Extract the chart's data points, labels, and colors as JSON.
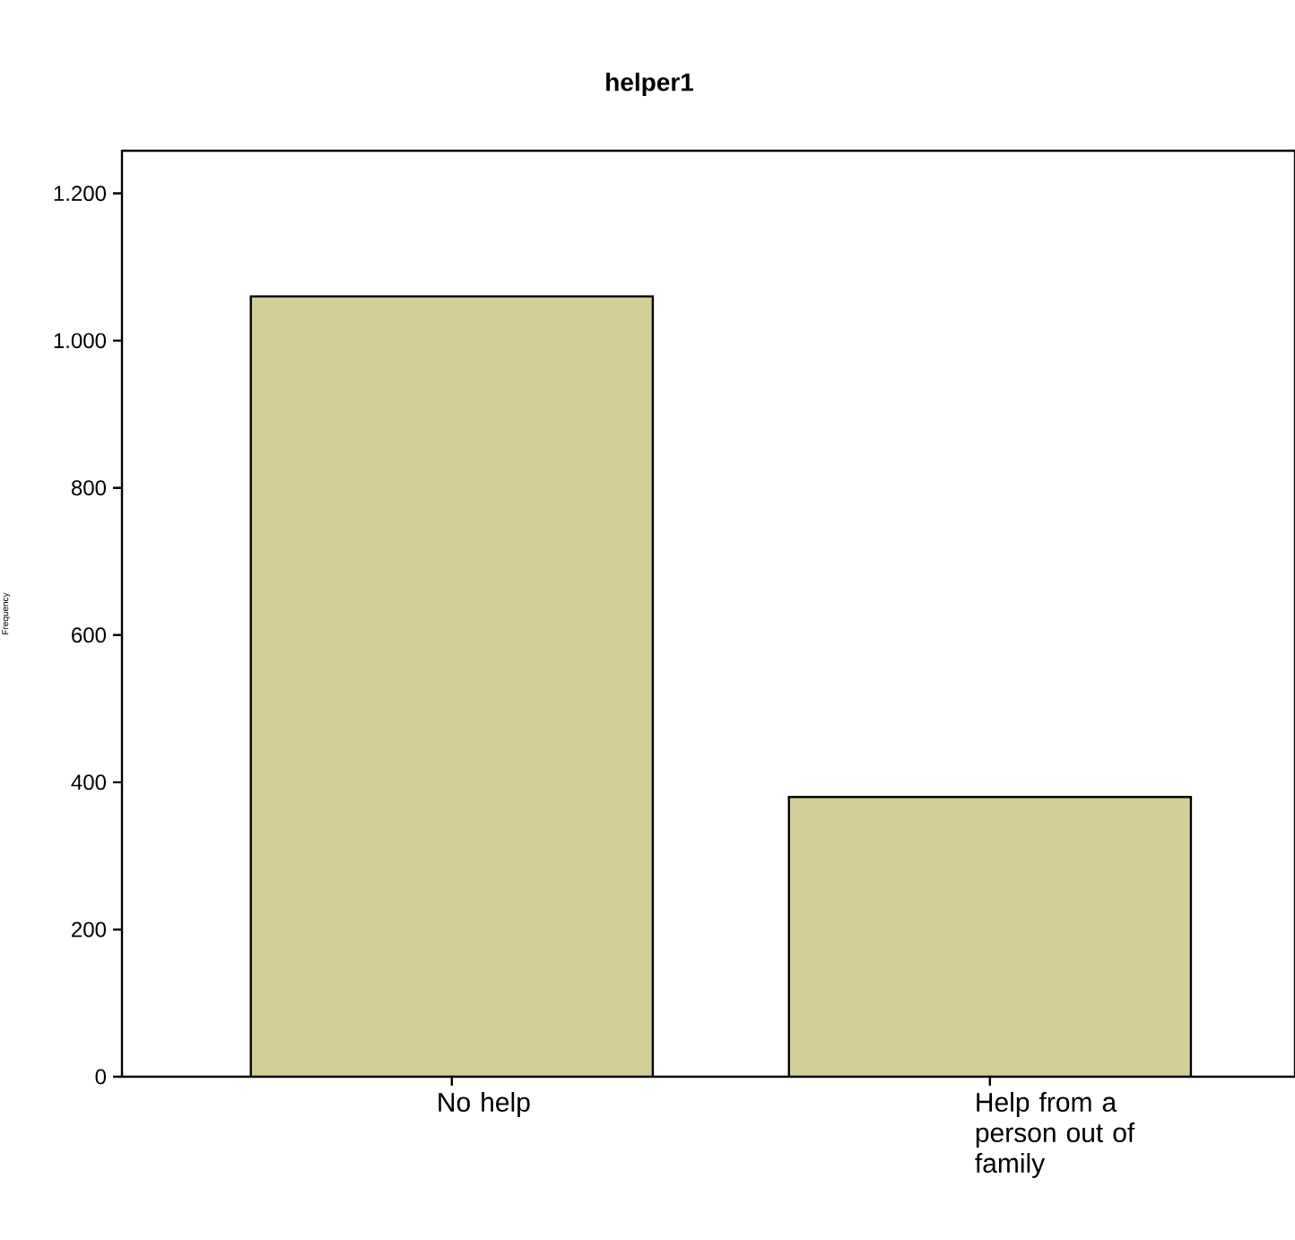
{
  "chart_data": {
    "type": "bar",
    "title": "helper1",
    "ylabel": "Frequency",
    "categories": [
      "No help",
      "Help from a person out of family"
    ],
    "values": [
      1060,
      380
    ],
    "color": "#d3cf98",
    "ylim": [
      0,
      1258
    ],
    "yticks": [
      0,
      200,
      400,
      600,
      800,
      {
        "value": 1000,
        "label": "1.000"
      },
      {
        "value": 1200,
        "label": "1.200"
      }
    ],
    "grid": false
  }
}
